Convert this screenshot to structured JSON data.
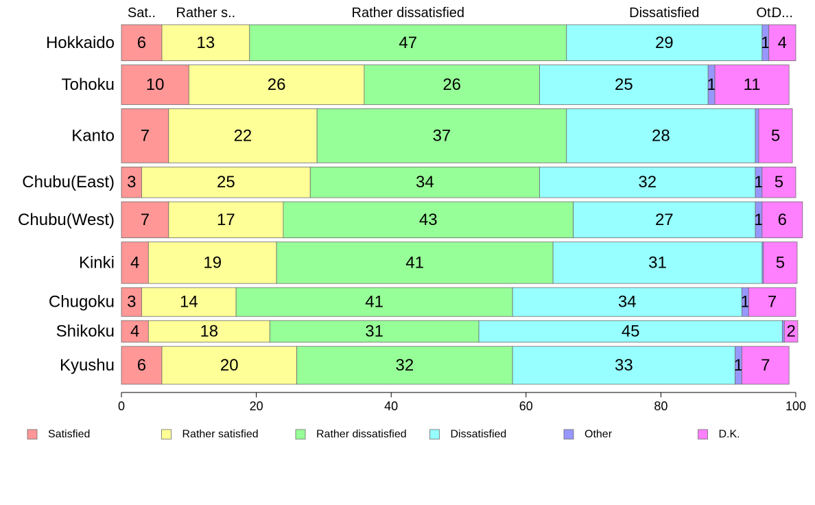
{
  "chart_data": {
    "type": "bar",
    "orientation": "horizontal",
    "stacked": true,
    "categories": [
      "Hokkaido",
      "Tohoku",
      "Kanto",
      "Chubu(East)",
      "Chubu(West)",
      "Kinki",
      "Chugoku",
      "Shikoku",
      "Kyushu"
    ],
    "series": [
      {
        "name": "Satisfied",
        "color": "#ff9797",
        "values": [
          6,
          10,
          7,
          3,
          7,
          4,
          3,
          4,
          6
        ]
      },
      {
        "name": "Rather satisfied",
        "color": "#ffff97",
        "values": [
          13,
          26,
          22,
          25,
          17,
          19,
          14,
          18,
          20
        ]
      },
      {
        "name": "Rather dissatisfied",
        "color": "#97ff97",
        "values": [
          47,
          26,
          37,
          34,
          43,
          41,
          41,
          31,
          32
        ]
      },
      {
        "name": "Dissatisfied",
        "color": "#97ffff",
        "values": [
          29,
          25,
          28,
          32,
          27,
          31,
          34,
          45,
          33
        ]
      },
      {
        "name": "Other",
        "color": "#9797ff",
        "values": [
          1,
          1,
          0.5,
          1,
          1,
          0.2,
          1,
          0.3,
          1
        ]
      },
      {
        "name": "D.K.",
        "color": "#ff80ff",
        "values": [
          4,
          11,
          5,
          5,
          6,
          5,
          7,
          2,
          7
        ]
      }
    ],
    "value_labels": [
      [
        "6",
        "13",
        "47",
        "29",
        "1",
        "4"
      ],
      [
        "10",
        "26",
        "26",
        "25",
        "1",
        "11"
      ],
      [
        "7",
        "22",
        "37",
        "28",
        "",
        "5"
      ],
      [
        "3",
        "25",
        "34",
        "32",
        "1",
        "5"
      ],
      [
        "7",
        "17",
        "43",
        "27",
        "1",
        "6"
      ],
      [
        "4",
        "19",
        "41",
        "31",
        "",
        "5"
      ],
      [
        "3",
        "14",
        "41",
        "34",
        "1",
        "7"
      ],
      [
        "4",
        "18",
        "31",
        "45",
        "",
        "2"
      ],
      [
        "6",
        "20",
        "32",
        "33",
        "1",
        "7"
      ]
    ],
    "top_labels": [
      "Sat..",
      "Rather s..",
      "Rather dissatisfied",
      "Dissatisfied",
      "Ot.",
      "D..."
    ],
    "row_weights": [
      1,
      1.1,
      1.5,
      0.85,
      1.0,
      1.15,
      0.8,
      0.6,
      1.05
    ],
    "xlim": [
      0,
      100
    ],
    "xticks": [
      "0",
      "20",
      "40",
      "60",
      "80",
      "100"
    ],
    "legend_position": "bottom",
    "grid": false
  }
}
